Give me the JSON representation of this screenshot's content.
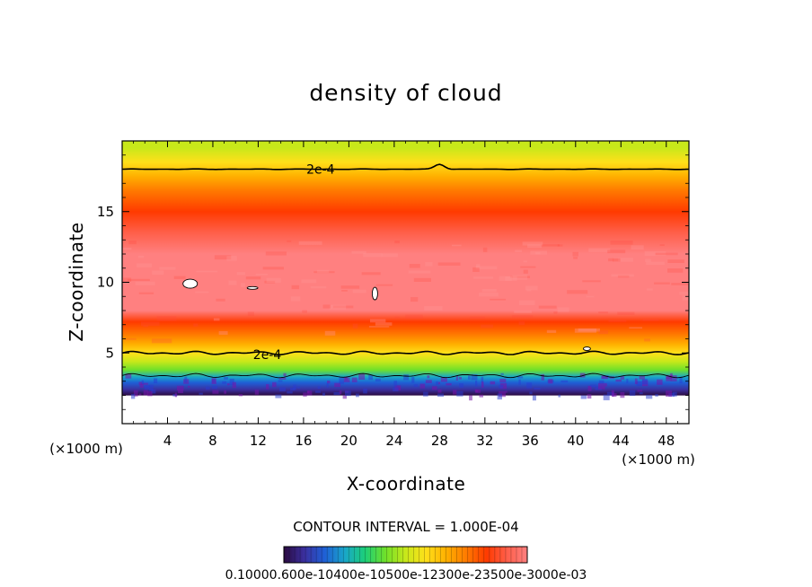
{
  "chart_data": {
    "type": "heatmap",
    "title": "density of cloud",
    "xlabel": "X-coordinate",
    "ylabel": "Z-coordinate",
    "x_unit": "(×1000 m)",
    "x_unit_right": "(×1000 m)",
    "xlim": [
      0,
      50
    ],
    "ylim": [
      0,
      20
    ],
    "x_ticks": [
      4,
      8,
      12,
      16,
      20,
      24,
      28,
      32,
      36,
      40,
      44,
      48
    ],
    "y_ticks": [
      5,
      10,
      15
    ],
    "contour_interval_text": "CONTOUR INTERVAL = 1.000E-04",
    "contour_labels": [
      {
        "text": "2e-4",
        "x": 17.5,
        "y": 18.0
      },
      {
        "text": "2e-4",
        "x": 12.8,
        "y": 4.9
      }
    ],
    "colorbar_label_text": "0.10000.600e-10400e-10500e-12300e-23500e-3000e-03",
    "colormap": [
      "#2a0a40",
      "#3b2f9e",
      "#1f5fd6",
      "#19a6c9",
      "#1ccf78",
      "#6fe02a",
      "#c8e81a",
      "#ffe01a",
      "#ffb000",
      "#ff7a00",
      "#ff3a00",
      "#ff5f4a",
      "#ff8080"
    ],
    "profile_note_colors": {
      "background_band": "#ff7f7f",
      "contour_line": "#000000"
    },
    "vertical_profile": [
      {
        "z": 2.0,
        "level": 0.0
      },
      {
        "z": 2.4,
        "level": 0.08
      },
      {
        "z": 2.9,
        "level": 0.18
      },
      {
        "z": 3.3,
        "level": 0.28
      },
      {
        "z": 3.8,
        "level": 0.4
      },
      {
        "z": 4.4,
        "level": 0.5
      },
      {
        "z": 5.0,
        "level": 0.58
      },
      {
        "z": 5.6,
        "level": 0.66
      },
      {
        "z": 6.3,
        "level": 0.75
      },
      {
        "z": 7.2,
        "level": 0.85
      },
      {
        "z": 8.0,
        "level": 0.97
      },
      {
        "z": 12.0,
        "level": 1.0
      },
      {
        "z": 13.5,
        "level": 0.92
      },
      {
        "z": 15.0,
        "level": 0.84
      },
      {
        "z": 16.5,
        "level": 0.72
      },
      {
        "z": 17.5,
        "level": 0.64
      },
      {
        "z": 18.5,
        "level": 0.56
      },
      {
        "z": 19.5,
        "level": 0.5
      },
      {
        "z": 20.0,
        "level": 0.48
      }
    ],
    "contour_2e4_upper_z": 18.0,
    "contour_2e4_lower_z": 5.0,
    "contour_lower_thin_z": 3.4
  }
}
